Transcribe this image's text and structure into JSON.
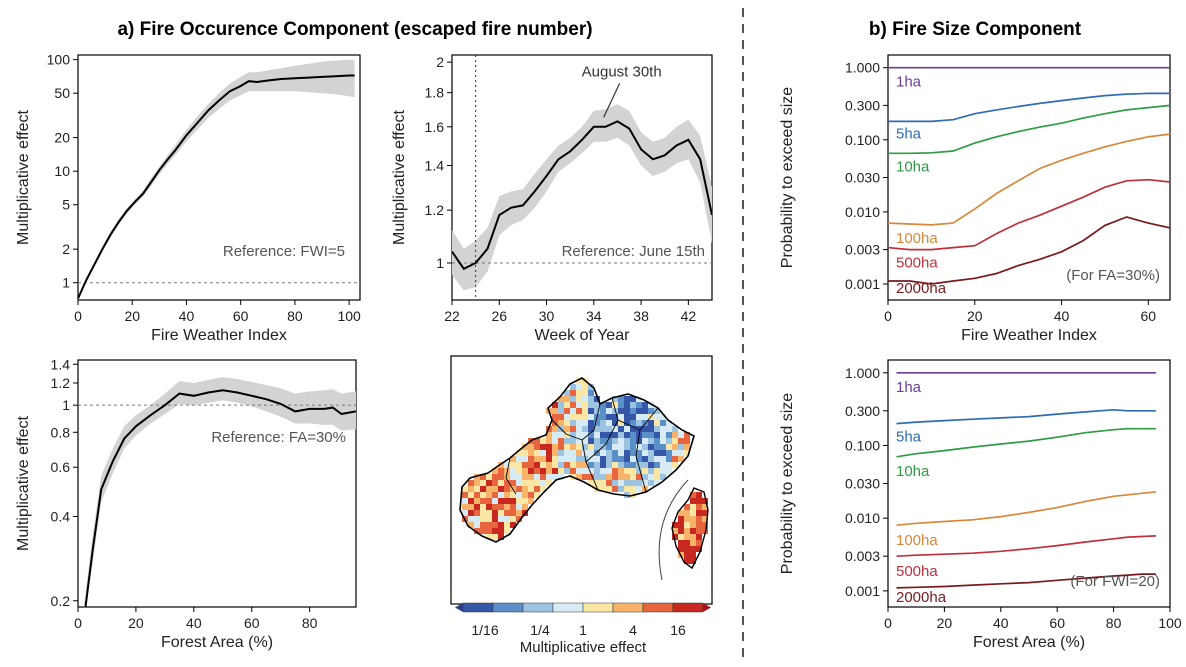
{
  "sections": {
    "a": "a) Fire Occurence Component (escaped fire number)",
    "b": "b) Fire Size Component"
  },
  "colors": {
    "line": "#000000",
    "band": "#d3d3d3",
    "ref": "#7a7a7a",
    "text": "#3a3a3a",
    "class_colors": [
      "#6a3d9a",
      "#2f6db3",
      "#2e9b45",
      "#d9873a",
      "#c0303c",
      "#7a1a1f"
    ],
    "colorbar": [
      "#3656a8",
      "#5b8fc7",
      "#9cc3e0",
      "#d6ebf3",
      "#fbe7a5",
      "#f7b36a",
      "#e8663f",
      "#c8281f"
    ]
  },
  "chart_data": [
    {
      "id": "fwi",
      "type": "line",
      "xlabel": "Fire Weather Index",
      "ylabel": "Multiplicative effect",
      "xlim": [
        0,
        104
      ],
      "ylim": [
        0.7,
        110
      ],
      "scale_y": "log",
      "xticks": [
        0,
        20,
        40,
        60,
        80,
        100
      ],
      "yticks": [
        1,
        2,
        5,
        10,
        20,
        50,
        100
      ],
      "ref_value": 1,
      "ref_label": "Reference: FWI=5",
      "x": [
        0,
        3,
        6,
        9,
        12,
        15,
        18,
        21,
        24,
        27,
        30,
        33,
        36,
        40,
        44,
        48,
        52,
        56,
        60,
        63,
        66,
        70,
        75,
        80,
        85,
        90,
        95,
        100,
        102
      ],
      "y": [
        0.72,
        1.05,
        1.45,
        2.0,
        2.7,
        3.5,
        4.4,
        5.3,
        6.3,
        8.0,
        10.2,
        12.7,
        15.5,
        21,
        27,
        35,
        43,
        52,
        58,
        64,
        63,
        65,
        67,
        68,
        69,
        70,
        71,
        72,
        72
      ],
      "lower": [
        0.7,
        1.0,
        1.38,
        1.9,
        2.55,
        3.3,
        4.15,
        5.0,
        5.9,
        7.4,
        9.4,
        11.6,
        14.0,
        18.5,
        23.5,
        30,
        36,
        43,
        48,
        52,
        52,
        52,
        52,
        52,
        51,
        50,
        49,
        47,
        46
      ],
      "upper": [
        0.74,
        1.1,
        1.52,
        2.1,
        2.85,
        3.7,
        4.65,
        5.6,
        6.7,
        8.7,
        11.0,
        13.9,
        17.2,
        23.5,
        31,
        40,
        50,
        61,
        70,
        77,
        77,
        80,
        84,
        88,
        92,
        96,
        98,
        100,
        100
      ]
    },
    {
      "id": "week",
      "type": "line",
      "xlabel": "Week of Year",
      "ylabel": "Multiplicative effect",
      "xlim": [
        22,
        44
      ],
      "ylim": [
        0.88,
        2.05
      ],
      "scale_y": "log",
      "xticks": [
        22,
        26,
        30,
        34,
        38,
        42
      ],
      "yticks": [
        1,
        1.2,
        1.4,
        1.6,
        1.8,
        2
      ],
      "ref_value": 1,
      "ref_label": "Reference: June 15th",
      "vline": 24,
      "annotation": "August 30th",
      "annotation_x": 35,
      "x": [
        22,
        23,
        24,
        25,
        26,
        27,
        28,
        29,
        30,
        31,
        32,
        33,
        34,
        35,
        36,
        37,
        38,
        39,
        40,
        41,
        42,
        43,
        44
      ],
      "y": [
        1.04,
        0.98,
        1.0,
        1.05,
        1.18,
        1.21,
        1.22,
        1.28,
        1.35,
        1.43,
        1.47,
        1.53,
        1.6,
        1.6,
        1.63,
        1.59,
        1.48,
        1.43,
        1.45,
        1.5,
        1.53,
        1.43,
        1.18
      ],
      "lower": [
        0.96,
        0.91,
        0.92,
        0.97,
        1.1,
        1.14,
        1.16,
        1.21,
        1.28,
        1.37,
        1.41,
        1.46,
        1.52,
        1.52,
        1.54,
        1.5,
        1.4,
        1.35,
        1.37,
        1.41,
        1.43,
        1.32,
        1.07
      ],
      "upper": [
        1.12,
        1.05,
        1.08,
        1.13,
        1.26,
        1.28,
        1.29,
        1.36,
        1.43,
        1.5,
        1.54,
        1.6,
        1.69,
        1.7,
        1.73,
        1.69,
        1.57,
        1.52,
        1.54,
        1.6,
        1.64,
        1.55,
        1.3
      ]
    },
    {
      "id": "fa",
      "type": "line",
      "xlabel": "Forest Area (%)",
      "ylabel": "Multiplicative effect",
      "xlim": [
        0,
        96
      ],
      "ylim": [
        0.19,
        1.45
      ],
      "scale_y": "log",
      "xticks": [
        0,
        20,
        40,
        60,
        80
      ],
      "yticks": [
        0.2,
        0.4,
        0.6,
        0.8,
        1,
        1.2,
        1.4
      ],
      "ref_value": 1,
      "ref_label": "Reference: FA=30%",
      "x": [
        2,
        5,
        8,
        12,
        16,
        20,
        25,
        30,
        35,
        40,
        45,
        50,
        55,
        60,
        65,
        70,
        75,
        80,
        85,
        88,
        91,
        96
      ],
      "y": [
        0.17,
        0.3,
        0.5,
        0.63,
        0.76,
        0.84,
        0.92,
        1.0,
        1.1,
        1.08,
        1.11,
        1.13,
        1.11,
        1.08,
        1.05,
        1.01,
        0.95,
        0.97,
        0.97,
        0.98,
        0.93,
        0.95
      ],
      "lower": [
        0.17,
        0.27,
        0.45,
        0.57,
        0.7,
        0.78,
        0.86,
        0.93,
        1.01,
        1.0,
        1.02,
        1.04,
        1.02,
        0.99,
        0.95,
        0.91,
        0.86,
        0.86,
        0.85,
        0.85,
        0.81,
        0.82
      ],
      "upper": [
        0.19,
        0.34,
        0.56,
        0.7,
        0.84,
        0.92,
        1.0,
        1.1,
        1.22,
        1.2,
        1.23,
        1.26,
        1.24,
        1.21,
        1.18,
        1.15,
        1.1,
        1.12,
        1.13,
        1.14,
        1.1,
        1.12
      ]
    },
    {
      "id": "map",
      "type": "heatmap",
      "colorbar_label": "Multiplicative effect",
      "colorbar_ticks": [
        "1/16",
        "1/4",
        "1",
        "4",
        "16"
      ]
    },
    {
      "id": "size_fwi",
      "type": "line",
      "xlabel": "Fire Weather Index",
      "ylabel": "Probability to exceed size",
      "xlim": [
        0,
        65
      ],
      "ylim": [
        0.0006,
        1.5
      ],
      "scale_y": "log",
      "xticks": [
        0,
        20,
        40,
        60
      ],
      "yticks": [
        0.001,
        0.003,
        0.01,
        0.03,
        0.1,
        0.3,
        1
      ],
      "ytick_labels": [
        "0.001",
        "0.003",
        "0.010",
        "0.030",
        "0.100",
        "0.300",
        "1.000"
      ],
      "note": "(For FA=30%)",
      "x": [
        0,
        5,
        10,
        15,
        20,
        25,
        30,
        35,
        40,
        45,
        50,
        55,
        60,
        65
      ],
      "series": [
        {
          "name": "1ha",
          "values": [
            1,
            1,
            1,
            1,
            1,
            1,
            1,
            1,
            1,
            1,
            1,
            1,
            1,
            1
          ]
        },
        {
          "name": "5ha",
          "values": [
            0.18,
            0.18,
            0.18,
            0.19,
            0.23,
            0.26,
            0.29,
            0.32,
            0.35,
            0.38,
            0.41,
            0.43,
            0.44,
            0.44
          ]
        },
        {
          "name": "10ha",
          "values": [
            0.065,
            0.065,
            0.066,
            0.07,
            0.09,
            0.11,
            0.13,
            0.15,
            0.17,
            0.2,
            0.23,
            0.26,
            0.28,
            0.3
          ]
        },
        {
          "name": "100ha",
          "values": [
            0.007,
            0.0068,
            0.0066,
            0.007,
            0.011,
            0.018,
            0.027,
            0.04,
            0.052,
            0.065,
            0.08,
            0.095,
            0.11,
            0.12
          ]
        },
        {
          "name": "500ha",
          "values": [
            0.0032,
            0.003,
            0.003,
            0.0032,
            0.0034,
            0.005,
            0.007,
            0.009,
            0.012,
            0.016,
            0.022,
            0.027,
            0.028,
            0.026
          ]
        },
        {
          "name": "2000ha",
          "values": [
            0.0011,
            0.0011,
            0.001,
            0.0011,
            0.0012,
            0.0014,
            0.0018,
            0.0022,
            0.0028,
            0.004,
            0.0065,
            0.0085,
            0.007,
            0.006
          ]
        }
      ]
    },
    {
      "id": "size_fa",
      "type": "line",
      "xlabel": "Forest Area (%)",
      "ylabel": "Probability to exceed size",
      "xlim": [
        0,
        100
      ],
      "ylim": [
        0.0006,
        1.5
      ],
      "scale_y": "log",
      "xticks": [
        0,
        20,
        40,
        60,
        80,
        100
      ],
      "yticks": [
        0.001,
        0.003,
        0.01,
        0.03,
        0.1,
        0.3,
        1
      ],
      "ytick_labels": [
        "0.001",
        "0.003",
        "0.010",
        "0.030",
        "0.100",
        "0.300",
        "1.000"
      ],
      "note": "(For FWI=20)",
      "x": [
        3,
        10,
        20,
        30,
        40,
        50,
        60,
        70,
        80,
        85,
        90,
        95
      ],
      "series": [
        {
          "name": "1ha",
          "values": [
            1,
            1,
            1,
            1,
            1,
            1,
            1,
            1,
            1,
            1,
            1,
            1
          ]
        },
        {
          "name": "5ha",
          "values": [
            0.2,
            0.21,
            0.22,
            0.23,
            0.24,
            0.25,
            0.27,
            0.29,
            0.31,
            0.3,
            0.3,
            0.3
          ]
        },
        {
          "name": "10ha",
          "values": [
            0.07,
            0.077,
            0.085,
            0.095,
            0.105,
            0.115,
            0.13,
            0.15,
            0.165,
            0.17,
            0.17,
            0.17
          ]
        },
        {
          "name": "100ha",
          "values": [
            0.008,
            0.0085,
            0.009,
            0.0095,
            0.0105,
            0.012,
            0.014,
            0.017,
            0.02,
            0.021,
            0.022,
            0.023
          ]
        },
        {
          "name": "500ha",
          "values": [
            0.003,
            0.0031,
            0.0032,
            0.0033,
            0.0035,
            0.0038,
            0.0042,
            0.0047,
            0.0052,
            0.0055,
            0.0056,
            0.0057
          ]
        },
        {
          "name": "2000ha",
          "values": [
            0.0011,
            0.00112,
            0.00115,
            0.0012,
            0.00125,
            0.0013,
            0.0014,
            0.0015,
            0.0016,
            0.00165,
            0.0017,
            0.0017
          ]
        }
      ]
    }
  ]
}
